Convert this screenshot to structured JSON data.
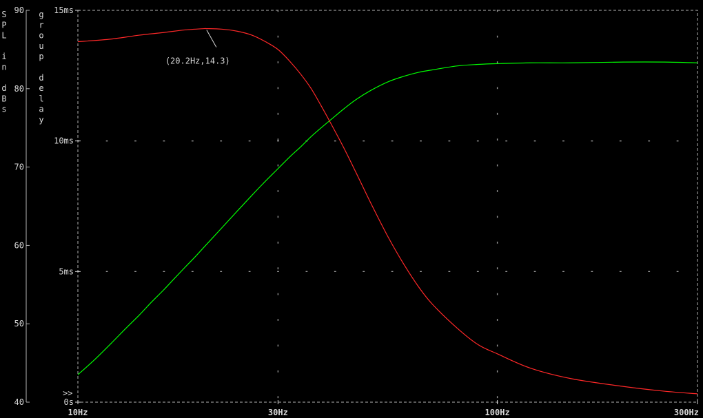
{
  "chart_data": {
    "type": "line",
    "x_scale": "log",
    "xlim": [
      10,
      300
    ],
    "x_ticks": [
      {
        "value": 10,
        "label": "10Hz"
      },
      {
        "value": 30,
        "label": "30Hz"
      },
      {
        "value": 100,
        "label": "100Hz"
      },
      {
        "value": 300,
        "label": "300Hz"
      }
    ],
    "y_left": {
      "label": "SPL in dBs",
      "ylim": [
        40,
        90
      ],
      "ticks": [
        {
          "value": 90,
          "label": "90"
        },
        {
          "value": 80,
          "label": "80"
        },
        {
          "value": 70,
          "label": "70"
        },
        {
          "value": 60,
          "label": "60"
        },
        {
          "value": 50,
          "label": "50"
        },
        {
          "value": 40,
          "label": "40"
        }
      ]
    },
    "y_right": {
      "label": "group delay",
      "ylim": [
        0,
        15
      ],
      "ticks": [
        {
          "value": 15,
          "label": "15ms"
        },
        {
          "value": 10,
          "label": "10ms"
        },
        {
          "value": 5,
          "label": "5ms"
        },
        {
          "value": 0,
          "label": "0s"
        }
      ]
    },
    "axis_marker": ">>",
    "grid": true,
    "series": [
      {
        "axis": "spl",
        "color": "#00ff00",
        "x": [
          10,
          11,
          12,
          13,
          14,
          15,
          16,
          17,
          18,
          19,
          20,
          22,
          24,
          26,
          28,
          30,
          32,
          34,
          36,
          38,
          40,
          43,
          46,
          50,
          55,
          60,
          65,
          70,
          80,
          90,
          100,
          120,
          150,
          200,
          250,
          300
        ],
        "y": [
          43.5,
          45.5,
          47.5,
          49.4,
          51.1,
          52.8,
          54.3,
          55.8,
          57.2,
          58.5,
          59.8,
          62.2,
          64.4,
          66.4,
          68.2,
          69.8,
          71.3,
          72.6,
          73.9,
          75.0,
          76.0,
          77.4,
          78.6,
          79.8,
          80.9,
          81.6,
          82.1,
          82.4,
          82.9,
          83.1,
          83.2,
          83.3,
          83.3,
          83.4,
          83.4,
          83.3
        ]
      },
      {
        "axis": "delay",
        "color": "#ff2828",
        "x": [
          10,
          12,
          14,
          16,
          18,
          20,
          20.2,
          22,
          24,
          26,
          28,
          30,
          32,
          34,
          36,
          38,
          40,
          43,
          46,
          50,
          55,
          60,
          65,
          70,
          80,
          90,
          100,
          120,
          150,
          200,
          250,
          300
        ],
        "y": [
          13.8,
          13.9,
          14.05,
          14.15,
          14.25,
          14.3,
          14.3,
          14.28,
          14.2,
          14.05,
          13.8,
          13.5,
          13.05,
          12.55,
          12.0,
          11.35,
          10.7,
          9.75,
          8.8,
          7.6,
          6.3,
          5.25,
          4.4,
          3.75,
          2.85,
          2.2,
          1.85,
          1.3,
          0.9,
          0.6,
          0.42,
          0.32
        ]
      }
    ],
    "annotation": {
      "text": "(20.2Hz,14.3)",
      "x": 20.2,
      "y": 14.3,
      "axis": "delay"
    }
  }
}
